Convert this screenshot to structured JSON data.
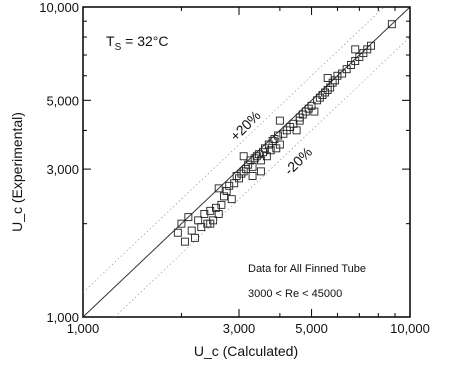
{
  "chart_data": {
    "type": "scatter",
    "x_scale": "log",
    "y_scale": "log",
    "xlim": [
      1000,
      10000
    ],
    "ylim": [
      1000,
      10000
    ],
    "xlabel": "U_c (Calculated)",
    "ylabel": "U_c (Experimental)",
    "x_ticks": [
      {
        "value": 1000,
        "label": "1,000"
      },
      {
        "value": 3000,
        "label": "3,000"
      },
      {
        "value": 5000,
        "label": "5,000"
      },
      {
        "value": 10000,
        "label": "10,000"
      }
    ],
    "y_ticks": [
      {
        "value": 1000,
        "label": "1,000"
      },
      {
        "value": 3000,
        "label": "3,000"
      },
      {
        "value": 5000,
        "label": "5,000"
      },
      {
        "value": 10000,
        "label": "10,000"
      }
    ],
    "grid": false,
    "marker": "open-square",
    "annotations": {
      "temperature": "T_S = 32°C",
      "plus_band": "+20%",
      "minus_band": "-20%",
      "note_line1": "Data for All Finned Tube",
      "note_line2": "3000 < Re  < 45000"
    },
    "reference_lines": [
      {
        "name": "parity",
        "factor": 1.0
      },
      {
        "name": "+20%",
        "factor": 1.2
      },
      {
        "name": "-20%",
        "factor": 0.8
      }
    ],
    "points": [
      [
        2000,
        2000
      ],
      [
        1950,
        1870
      ],
      [
        2050,
        1750
      ],
      [
        2150,
        1900
      ],
      [
        2100,
        2100
      ],
      [
        2250,
        2050
      ],
      [
        2350,
        2150
      ],
      [
        2200,
        1800
      ],
      [
        2400,
        2000
      ],
      [
        2450,
        2200
      ],
      [
        2500,
        2050
      ],
      [
        2550,
        2250
      ],
      [
        2600,
        2150
      ],
      [
        2300,
        1950
      ],
      [
        2650,
        2300
      ],
      [
        2700,
        2450
      ],
      [
        2750,
        2550
      ],
      [
        2800,
        2650
      ],
      [
        2850,
        2400
      ],
      [
        2900,
        2700
      ],
      [
        2950,
        2850
      ],
      [
        3000,
        2800
      ],
      [
        3050,
        2900
      ],
      [
        3100,
        2950
      ],
      [
        3150,
        3000
      ],
      [
        3200,
        3100
      ],
      [
        3250,
        3200
      ],
      [
        3300,
        3050
      ],
      [
        3350,
        3250
      ],
      [
        3400,
        3300
      ],
      [
        3450,
        3350
      ],
      [
        3500,
        3200
      ],
      [
        3550,
        3400
      ],
      [
        3600,
        3500
      ],
      [
        3650,
        3300
      ],
      [
        3700,
        3600
      ],
      [
        3750,
        3450
      ],
      [
        3800,
        3700
      ],
      [
        3850,
        3750
      ],
      [
        3900,
        3500
      ],
      [
        3950,
        3850
      ],
      [
        4000,
        3600
      ],
      [
        4100,
        3900
      ],
      [
        4200,
        4000
      ],
      [
        4300,
        4100
      ],
      [
        4400,
        4200
      ],
      [
        4500,
        4000
      ],
      [
        4600,
        4400
      ],
      [
        4700,
        4500
      ],
      [
        4800,
        4600
      ],
      [
        4900,
        4700
      ],
      [
        5000,
        4800
      ],
      [
        5100,
        4600
      ],
      [
        5200,
        5000
      ],
      [
        5300,
        5100
      ],
      [
        5400,
        5200
      ],
      [
        5500,
        5300
      ],
      [
        5600,
        5400
      ],
      [
        5700,
        5500
      ],
      [
        5800,
        5700
      ],
      [
        5900,
        5800
      ],
      [
        6000,
        6000
      ],
      [
        6200,
        6100
      ],
      [
        6400,
        6300
      ],
      [
        6600,
        6500
      ],
      [
        6800,
        6700
      ],
      [
        7000,
        6900
      ],
      [
        7200,
        7100
      ],
      [
        7400,
        7300
      ],
      [
        7600,
        7500
      ],
      [
        8800,
        8800
      ],
      [
        3300,
        2850
      ],
      [
        3500,
        2950
      ],
      [
        2600,
        2600
      ],
      [
        4600,
        4300
      ],
      [
        5600,
        5900
      ],
      [
        6800,
        7300
      ],
      [
        4000,
        4300
      ],
      [
        3100,
        3300
      ],
      [
        2450,
        2000
      ]
    ]
  }
}
